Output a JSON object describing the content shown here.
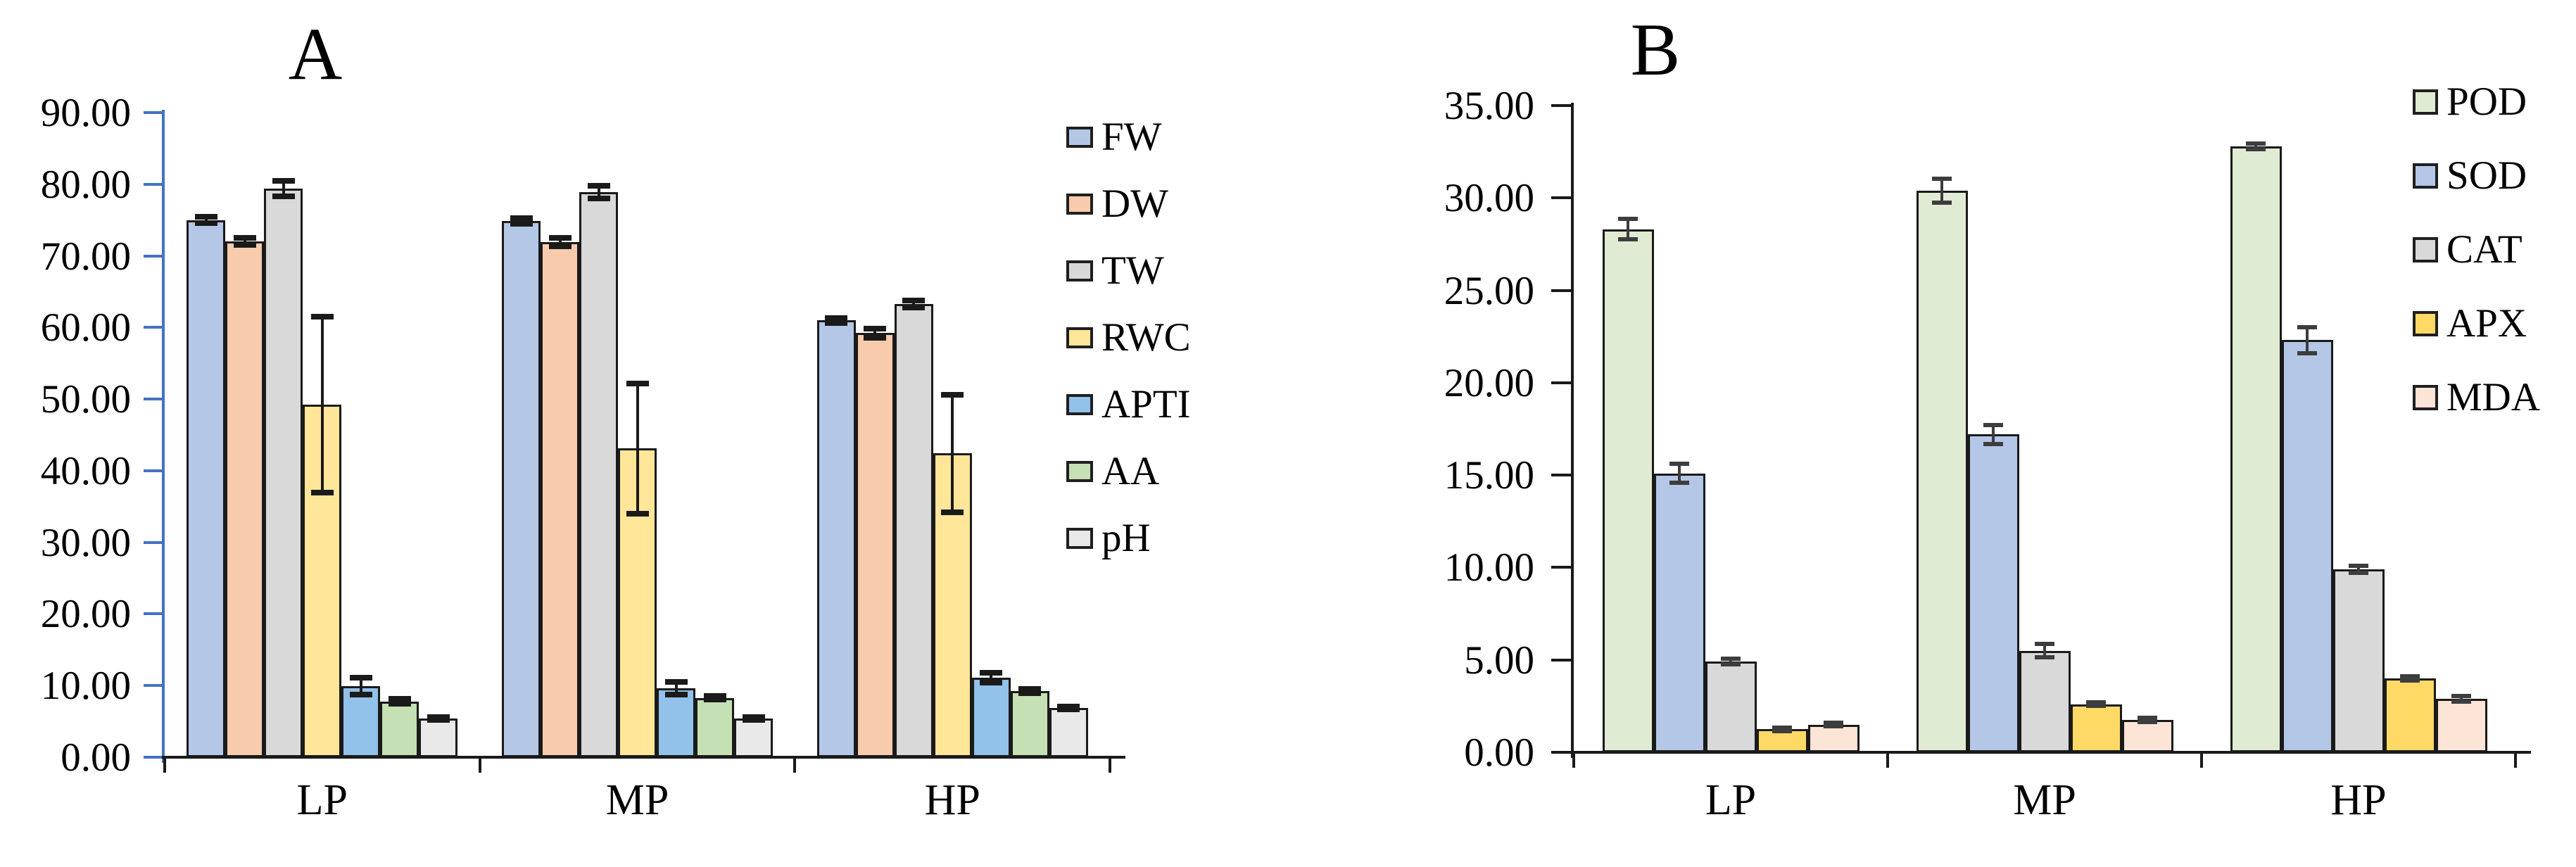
{
  "figure": {
    "background_color": "#ffffff",
    "panel_count": 2
  },
  "chart_data": [
    {
      "type": "bar",
      "panel_label": "A",
      "title": "A",
      "xlabel": "",
      "ylabel": "",
      "categories": [
        "LP",
        "MP",
        "HP"
      ],
      "series": [
        {
          "name": "FW",
          "color": "#B4C7E7",
          "values": [
            75.0,
            74.9,
            61.0
          ],
          "errors": [
            0.45,
            0.4,
            0.35
          ]
        },
        {
          "name": "DW",
          "color": "#F8CBAD",
          "values": [
            72.0,
            71.9,
            59.2
          ],
          "errors": [
            0.5,
            0.6,
            0.6
          ]
        },
        {
          "name": "TW",
          "color": "#D9D9D9",
          "values": [
            79.4,
            78.9,
            63.3
          ],
          "errors": [
            1.1,
            0.9,
            0.5
          ]
        },
        {
          "name": "RWC",
          "color": "#FFE699",
          "values": [
            49.2,
            43.1,
            42.4
          ],
          "errors": [
            12.3,
            9.1,
            8.2
          ]
        },
        {
          "name": "APTI",
          "color": "#92C1E9",
          "values": [
            9.9,
            9.6,
            11.1
          ],
          "errors": [
            1.2,
            0.9,
            0.7
          ]
        },
        {
          "name": "AA",
          "color": "#C5E0B4",
          "values": [
            7.8,
            8.3,
            9.2
          ],
          "errors": [
            0.35,
            0.25,
            0.3
          ]
        },
        {
          "name": "pH",
          "color": "#E9E9E9",
          "values": [
            5.4,
            5.4,
            6.9
          ],
          "errors": [
            0.2,
            0.2,
            0.2
          ]
        }
      ],
      "ylim": [
        0,
        90
      ],
      "ytick_step": 10,
      "ytick_format_decimals": 2,
      "grid": false,
      "legend_position": "right",
      "axis_color": "#4472C4",
      "x_axis_color": "#1a1a1a",
      "error_bar_color": "#1a1a1a"
    },
    {
      "type": "bar",
      "panel_label": "B",
      "title": "B",
      "xlabel": "",
      "ylabel": "",
      "categories": [
        "LP",
        "MP",
        "HP"
      ],
      "series": [
        {
          "name": "POD",
          "color": "#DFEBD3",
          "values": [
            28.3,
            30.4,
            32.8
          ],
          "errors": [
            0.55,
            0.65,
            0.15
          ]
        },
        {
          "name": "SOD",
          "color": "#B4C7E7",
          "values": [
            15.1,
            17.2,
            22.3
          ],
          "errors": [
            0.5,
            0.5,
            0.7
          ]
        },
        {
          "name": "CAT",
          "color": "#D9D9D9",
          "values": [
            4.9,
            5.5,
            9.9
          ],
          "errors": [
            0.15,
            0.35,
            0.2
          ]
        },
        {
          "name": "APX",
          "color": "#FFD966",
          "values": [
            1.25,
            2.6,
            4.0
          ],
          "errors": [
            0.1,
            0.1,
            0.12
          ]
        },
        {
          "name": "MDA",
          "color": "#FCE4D6",
          "values": [
            1.5,
            1.75,
            2.9
          ],
          "errors": [
            0.1,
            0.12,
            0.15
          ]
        }
      ],
      "ylim": [
        0,
        35
      ],
      "ytick_step": 5,
      "ytick_format_decimals": 2,
      "grid": false,
      "legend_position": "right",
      "axis_color": "#1a1a1a",
      "x_axis_color": "#1a1a1a",
      "error_bar_color": "#3d3d3d"
    }
  ]
}
